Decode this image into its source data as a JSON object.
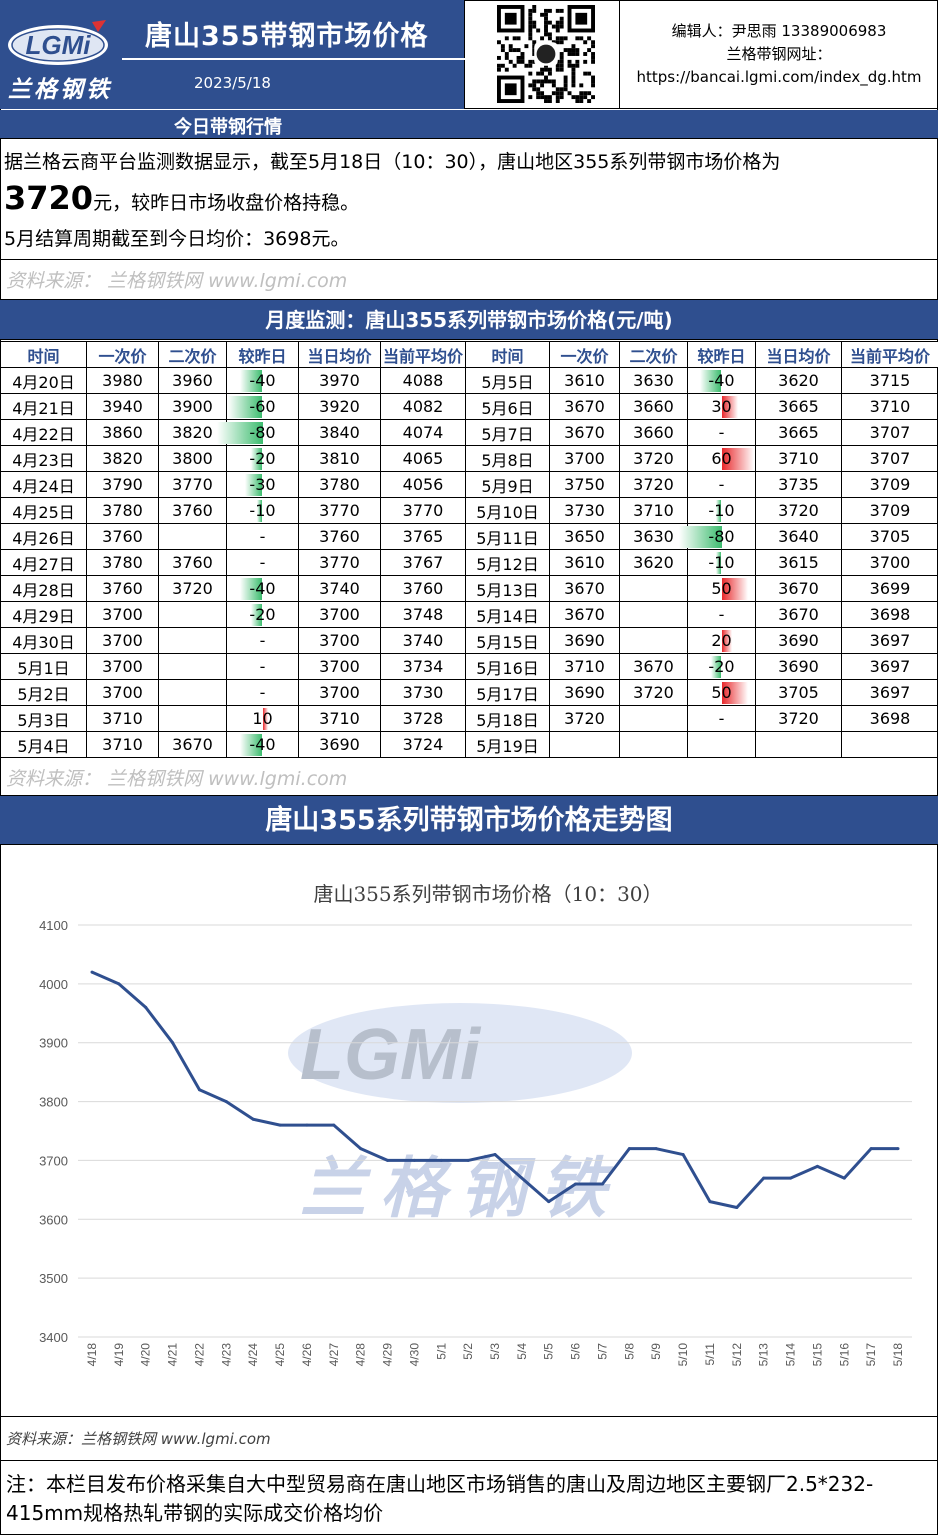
{
  "header": {
    "logo_text": "LGMi",
    "brand_cn": "兰格钢铁",
    "title": "唐山355带钢市场价格",
    "date": "2023/5/18",
    "editor": "编辑人：尹思雨 13389006983",
    "site_label": "兰格带钢网址：",
    "site_url": "https://bancai.lgmi.com/index_dg.htm"
  },
  "today": {
    "section_title": "今日带钢行情",
    "line1": "据兰格云商平台监测数据显示，截至5月18日（10：30），唐山地区355系列带钢市场价格为",
    "price": "3720",
    "line2_suffix": "元，较昨日市场收盘价格持稳。",
    "line3": "5月结算周期截至到今日均价：3698元。",
    "source": "资料来源： 兰格钢铁网 www.lgmi.com"
  },
  "monthly": {
    "title": "月度监测：唐山355系列带钢市场价格(元/吨)",
    "headers": [
      "时间",
      "一次价",
      "二次价",
      "较昨日",
      "当日均价",
      "当前平均价",
      "时间",
      "一次价",
      "二次价",
      "较昨日",
      "当日均价",
      "当前平均价"
    ],
    "left": [
      {
        "date": "4月20日",
        "p1": "3980",
        "p2": "3960",
        "chg": "-40",
        "avg": "3970",
        "cavg": "4088"
      },
      {
        "date": "4月21日",
        "p1": "3940",
        "p2": "3900",
        "chg": "-60",
        "avg": "3920",
        "cavg": "4082"
      },
      {
        "date": "4月22日",
        "p1": "3860",
        "p2": "3820",
        "chg": "-80",
        "avg": "3840",
        "cavg": "4074"
      },
      {
        "date": "4月23日",
        "p1": "3820",
        "p2": "3800",
        "chg": "-20",
        "avg": "3810",
        "cavg": "4065"
      },
      {
        "date": "4月24日",
        "p1": "3790",
        "p2": "3770",
        "chg": "-30",
        "avg": "3780",
        "cavg": "4056"
      },
      {
        "date": "4月25日",
        "p1": "3780",
        "p2": "3760",
        "chg": "-10",
        "avg": "3770",
        "cavg": "3770"
      },
      {
        "date": "4月26日",
        "p1": "3760",
        "p2": "",
        "chg": "-",
        "avg": "3760",
        "cavg": "3765"
      },
      {
        "date": "4月27日",
        "p1": "3780",
        "p2": "3760",
        "chg": "-",
        "avg": "3770",
        "cavg": "3767"
      },
      {
        "date": "4月28日",
        "p1": "3760",
        "p2": "3720",
        "chg": "-40",
        "avg": "3740",
        "cavg": "3760"
      },
      {
        "date": "4月29日",
        "p1": "3700",
        "p2": "",
        "chg": "-20",
        "avg": "3700",
        "cavg": "3748"
      },
      {
        "date": "4月30日",
        "p1": "3700",
        "p2": "",
        "chg": "-",
        "avg": "3700",
        "cavg": "3740"
      },
      {
        "date": "5月1日",
        "p1": "3700",
        "p2": "",
        "chg": "-",
        "avg": "3700",
        "cavg": "3734"
      },
      {
        "date": "5月2日",
        "p1": "3700",
        "p2": "",
        "chg": "-",
        "avg": "3700",
        "cavg": "3730"
      },
      {
        "date": "5月3日",
        "p1": "3710",
        "p2": "",
        "chg": "10",
        "avg": "3710",
        "cavg": "3728"
      },
      {
        "date": "5月4日",
        "p1": "3710",
        "p2": "3670",
        "chg": "-40",
        "avg": "3690",
        "cavg": "3724"
      }
    ],
    "right": [
      {
        "date": "5月5日",
        "p1": "3610",
        "p2": "3630",
        "chg": "-40",
        "avg": "3620",
        "cavg": "3715"
      },
      {
        "date": "5月6日",
        "p1": "3670",
        "p2": "3660",
        "chg": "30",
        "avg": "3665",
        "cavg": "3710"
      },
      {
        "date": "5月7日",
        "p1": "3670",
        "p2": "3660",
        "chg": "-",
        "avg": "3665",
        "cavg": "3707"
      },
      {
        "date": "5月8日",
        "p1": "3700",
        "p2": "3720",
        "chg": "60",
        "avg": "3710",
        "cavg": "3707"
      },
      {
        "date": "5月9日",
        "p1": "3750",
        "p2": "3720",
        "chg": "-",
        "avg": "3735",
        "cavg": "3709"
      },
      {
        "date": "5月10日",
        "p1": "3730",
        "p2": "3710",
        "chg": "-10",
        "avg": "3720",
        "cavg": "3709"
      },
      {
        "date": "5月11日",
        "p1": "3650",
        "p2": "3630",
        "chg": "-80",
        "avg": "3640",
        "cavg": "3705"
      },
      {
        "date": "5月12日",
        "p1": "3610",
        "p2": "3620",
        "chg": "-10",
        "avg": "3615",
        "cavg": "3700"
      },
      {
        "date": "5月13日",
        "p1": "3670",
        "p2": "",
        "chg": "50",
        "avg": "3670",
        "cavg": "3699"
      },
      {
        "date": "5月14日",
        "p1": "3670",
        "p2": "",
        "chg": "-",
        "avg": "3670",
        "cavg": "3698"
      },
      {
        "date": "5月15日",
        "p1": "3690",
        "p2": "",
        "chg": "20",
        "avg": "3690",
        "cavg": "3697"
      },
      {
        "date": "5月16日",
        "p1": "3710",
        "p2": "3670",
        "chg": "-20",
        "avg": "3690",
        "cavg": "3697"
      },
      {
        "date": "5月17日",
        "p1": "3690",
        "p2": "3720",
        "chg": "50",
        "avg": "3705",
        "cavg": "3697"
      },
      {
        "date": "5月18日",
        "p1": "3720",
        "p2": "",
        "chg": "-",
        "avg": "3720",
        "cavg": "3698"
      },
      {
        "date": "5月19日",
        "p1": "",
        "p2": "",
        "chg": "",
        "avg": "",
        "cavg": ""
      }
    ],
    "source": "资料来源： 兰格钢铁网 www.lgmi.com"
  },
  "chart_section": {
    "title": "唐山355系列带钢市场价格走势图",
    "watermark_cn": "兰格钢铁",
    "source": "资料来源：兰格钢铁网 www.lgmi.com"
  },
  "chart_data": {
    "type": "line",
    "title": "唐山355系列带钢市场价格（10：30）",
    "xlabel": "",
    "ylabel": "",
    "ylim": [
      3400,
      4100
    ],
    "yticks": [
      3400,
      3500,
      3600,
      3700,
      3800,
      3900,
      4000,
      4100
    ],
    "grid": true,
    "x": [
      "4/18",
      "4/19",
      "4/20",
      "4/21",
      "4/22",
      "4/23",
      "4/24",
      "4/25",
      "4/26",
      "4/27",
      "4/28",
      "4/29",
      "4/30",
      "5/1",
      "5/2",
      "5/3",
      "5/4",
      "5/5",
      "5/6",
      "5/7",
      "5/8",
      "5/9",
      "5/10",
      "5/11",
      "5/12",
      "5/13",
      "5/14",
      "5/15",
      "5/16",
      "5/17",
      "5/18"
    ],
    "series": [
      {
        "values": [
          4020,
          4000,
          3960,
          3900,
          3820,
          3800,
          3770,
          3760,
          3760,
          3760,
          3720,
          3700,
          3700,
          3700,
          3700,
          3710,
          3670,
          3630,
          3660,
          3660,
          3720,
          3720,
          3710,
          3630,
          3620,
          3670,
          3670,
          3690,
          3670,
          3720,
          3720
        ],
        "color": "#2f4f8f"
      }
    ]
  },
  "note": "注：本栏目发布价格采集自大中型贸易商在唐山地区市场销售的唐山及周边地区主要钢厂2.5*232-415mm规格热轧带钢的实际成交价格均价"
}
